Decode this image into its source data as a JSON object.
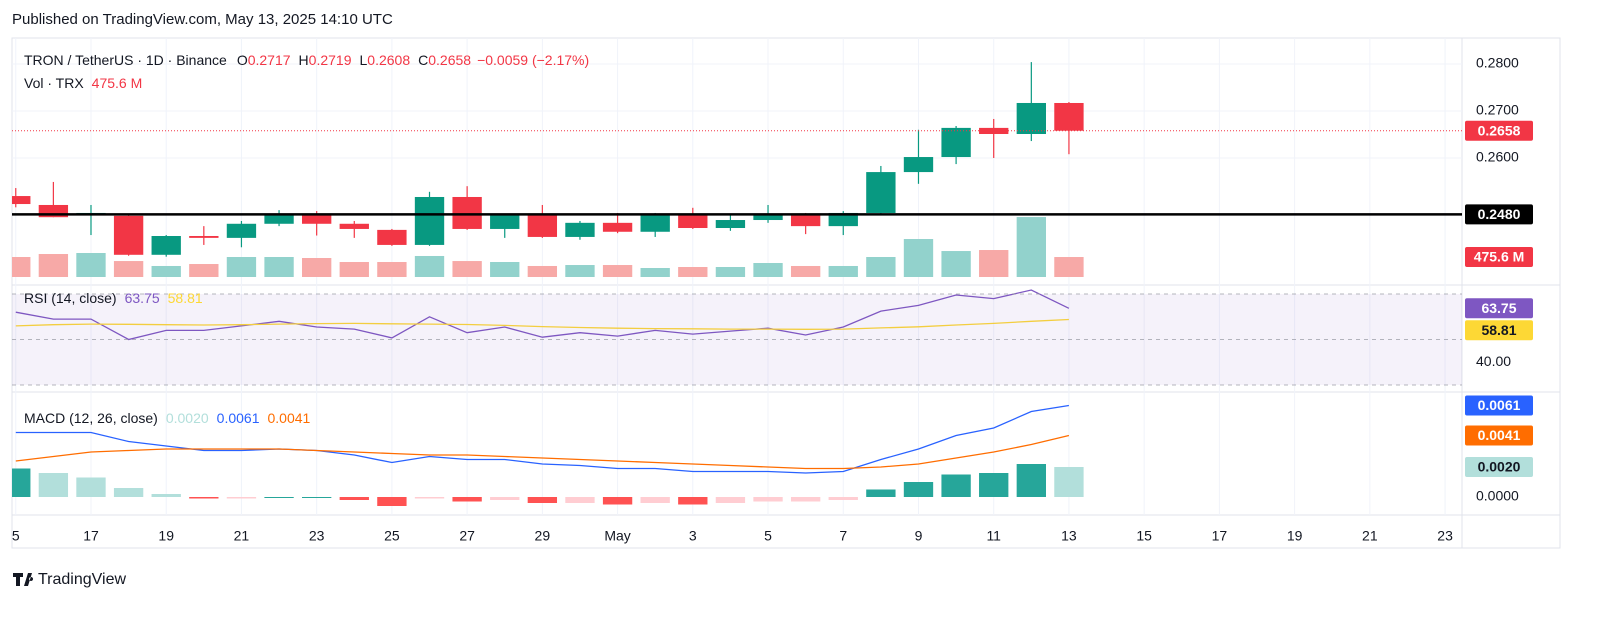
{
  "publisher": "Published on TradingView.com, May 13, 2025 14:10 UTC",
  "brand": "TradingView",
  "chart_data": {
    "type": "candlestick",
    "symbol": "TRON / TetherUS · 1D · Binance",
    "ohlc_labels": [
      "O",
      "H",
      "L",
      "C"
    ],
    "change": "−0.0059 (−2.17%)",
    "up_color": "#089981",
    "down_color": "#f23645",
    "volume_up": "#92d2cc",
    "volume_down": "#f7a9a7",
    "grid": true,
    "xlim": [
      -0.1,
      38.45
    ],
    "xticks": [
      {
        "value": 0,
        "label": "5"
      },
      {
        "value": 2,
        "label": "17"
      },
      {
        "value": 4,
        "label": "19"
      },
      {
        "value": 6,
        "label": "21"
      },
      {
        "value": 8,
        "label": "23"
      },
      {
        "value": 10,
        "label": "25"
      },
      {
        "value": 12,
        "label": "27"
      },
      {
        "value": 14,
        "label": "29"
      },
      {
        "value": 16,
        "label": "May"
      },
      {
        "value": 18,
        "label": "3"
      },
      {
        "value": 20,
        "label": "5"
      },
      {
        "value": 22,
        "label": "7"
      },
      {
        "value": 24,
        "label": "9"
      },
      {
        "value": 26,
        "label": "11"
      },
      {
        "value": 28,
        "label": "13"
      },
      {
        "value": 30,
        "label": "15"
      },
      {
        "value": 32,
        "label": "17"
      },
      {
        "value": 34,
        "label": "19"
      },
      {
        "value": 36,
        "label": "21"
      },
      {
        "value": 38,
        "label": "23"
      }
    ],
    "ylim": [
      0.2334,
      0.2851
    ],
    "yticks": [
      {
        "value": 0.28,
        "label": "0.2800"
      },
      {
        "value": 0.27,
        "label": "0.2700"
      },
      {
        "value": 0.26,
        "label": "0.2600"
      }
    ],
    "open": [
      0.2519,
      0.25,
      0.2478,
      0.2477,
      0.2394,
      0.2434,
      0.243,
      0.246,
      0.2481,
      0.246,
      0.2447,
      0.2415,
      0.2517,
      0.2449,
      0.2479,
      0.2432,
      0.2462,
      0.2443,
      0.2479,
      0.2451,
      0.2468,
      0.2479,
      0.2455,
      0.2483,
      0.257,
      0.2602,
      0.2664,
      0.2651,
      0.2717
    ],
    "high": [
      0.2536,
      0.2549,
      0.25,
      0.2479,
      0.2436,
      0.2455,
      0.2466,
      0.2489,
      0.2487,
      0.2466,
      0.2449,
      0.2528,
      0.254,
      0.248,
      0.25,
      0.2466,
      0.2483,
      0.2483,
      0.2494,
      0.2479,
      0.25,
      0.2483,
      0.2487,
      0.2583,
      0.266,
      0.2668,
      0.2683,
      0.2804,
      0.2719
    ],
    "low": [
      0.2495,
      0.2474,
      0.2436,
      0.2392,
      0.239,
      0.2415,
      0.241,
      0.2455,
      0.2435,
      0.243,
      0.2413,
      0.2413,
      0.2447,
      0.243,
      0.243,
      0.2426,
      0.244,
      0.2432,
      0.2449,
      0.2445,
      0.2462,
      0.2438,
      0.2436,
      0.2481,
      0.2545,
      0.2587,
      0.26,
      0.2636,
      0.2608
    ],
    "close": [
      0.2502,
      0.2474,
      0.2483,
      0.2394,
      0.2434,
      0.243,
      0.246,
      0.2481,
      0.246,
      0.2449,
      0.2415,
      0.2517,
      0.2449,
      0.2479,
      0.2432,
      0.2462,
      0.2443,
      0.2479,
      0.2451,
      0.2468,
      0.2479,
      0.2455,
      0.2483,
      0.257,
      0.2602,
      0.2664,
      0.2651,
      0.2717,
      0.2658
    ],
    "hline": {
      "value": 0.248,
      "label": "0.2480",
      "color": "#000000"
    },
    "volume": {
      "label": "Vol · TRX",
      "ylim": [
        0,
        5640
      ],
      "value_label": "475.6 M",
      "values": [
        476,
        547,
        571,
        380,
        262,
        309,
        476,
        476,
        452,
        357,
        357,
        500,
        380,
        357,
        262,
        285,
        285,
        214,
        238,
        238,
        333,
        262,
        262,
        476,
        904,
        618,
        642,
        1427,
        475.6
      ]
    },
    "rsi": {
      "title": "RSI (14, close)",
      "ylim": [
        27.8,
        73.1
      ],
      "yticks": [
        {
          "value": 40,
          "label": "40.00"
        }
      ],
      "bands": [
        70,
        50,
        30
      ],
      "band_fill": "#7e57c2",
      "series": [
        {
          "color": "#7e57c2",
          "values": [
            62,
            59,
            59,
            50,
            54,
            54,
            56,
            58,
            55.5,
            54.6,
            50.7,
            60,
            53,
            55.5,
            51,
            53,
            51.5,
            54,
            52.4,
            53.7,
            55,
            52,
            55.5,
            62.5,
            65,
            69.6,
            68,
            71.8,
            63.75
          ]
        },
        {
          "color": "#fdd835",
          "values": [
            56.0,
            56.5,
            56.8,
            56.7,
            56.5,
            56.4,
            56.5,
            56.8,
            57.0,
            57.1,
            56.9,
            56.8,
            56.6,
            56.2,
            55.7,
            55.3,
            55.0,
            54.8,
            54.7,
            54.6,
            54.6,
            54.5,
            54.6,
            55.1,
            55.6,
            56.4,
            57.1,
            58.0,
            58.81
          ]
        }
      ]
    },
    "macd": {
      "title": "MACD (12, 26, close)",
      "ylim": [
        -0.001,
        0.007
      ],
      "yticks": [
        {
          "value": 0,
          "label": "0.0000"
        }
      ],
      "histogram": {
        "value_label": "0.0020",
        "colors": [
          "#26a69a",
          "#b2dfdb",
          "#ff5252",
          "#ffcdd2"
        ],
        "values": [
          0.0019,
          0.0016,
          0.0013,
          0.0006,
          0.0002,
          -0.0001,
          -0.0001,
          0.0,
          0.0,
          -0.0002,
          -0.0006,
          -0.0001,
          -0.0003,
          -0.0002,
          -0.0004,
          -0.0004,
          -0.0005,
          -0.0004,
          -0.0005,
          -0.0004,
          -0.0003,
          -0.0003,
          -0.0002,
          0.0005,
          0.001,
          0.0015,
          0.0016,
          0.0022,
          0.002
        ]
      },
      "series": [
        {
          "color": "#2962ff",
          "value_label": "0.0061",
          "values": [
            0.0043,
            0.0043,
            0.0043,
            0.0037,
            0.0034,
            0.0031,
            0.0031,
            0.0032,
            0.0031,
            0.0028,
            0.0023,
            0.0027,
            0.0025,
            0.0025,
            0.0022,
            0.0021,
            0.0019,
            0.0019,
            0.0017,
            0.0017,
            0.0017,
            0.0016,
            0.0017,
            0.0025,
            0.0032,
            0.0041,
            0.0046,
            0.0057,
            0.0061
          ]
        },
        {
          "color": "#ff6d00",
          "value_label": "0.0041",
          "values": [
            0.0024,
            0.0027,
            0.003,
            0.0031,
            0.0032,
            0.0032,
            0.0032,
            0.0032,
            0.0031,
            0.003,
            0.0029,
            0.0028,
            0.0028,
            0.0027,
            0.0026,
            0.0025,
            0.0024,
            0.0023,
            0.0022,
            0.0021,
            0.002,
            0.0019,
            0.0019,
            0.002,
            0.0022,
            0.0026,
            0.003,
            0.0035,
            0.0041
          ]
        }
      ]
    }
  }
}
